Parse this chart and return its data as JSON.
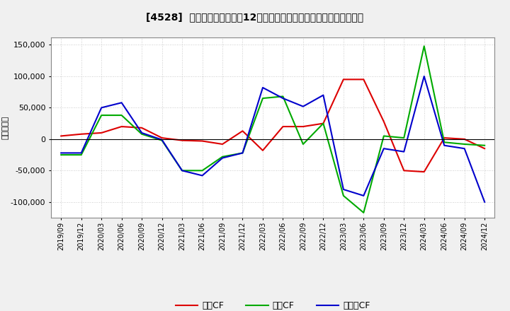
{
  "title": "[4528]  キャッシュフローの12か月移動合計の対前年同期増減額の推移",
  "ylabel": "（百万円）",
  "background_color": "#f0f0f0",
  "plot_background": "#ffffff",
  "grid_color": "#bbbbbb",
  "dates": [
    "2019/09",
    "2019/12",
    "2020/03",
    "2020/06",
    "2020/09",
    "2020/12",
    "2021/03",
    "2021/06",
    "2021/09",
    "2021/12",
    "2022/03",
    "2022/06",
    "2022/09",
    "2022/12",
    "2023/03",
    "2023/06",
    "2023/09",
    "2023/12",
    "2024/03",
    "2024/06",
    "2024/09",
    "2024/12"
  ],
  "operating_cf": [
    5000,
    8000,
    10000,
    20000,
    18000,
    2000,
    -2000,
    -3000,
    -8000,
    13000,
    -18000,
    20000,
    20000,
    25000,
    95000,
    95000,
    28000,
    -50000,
    -52000,
    2000,
    0,
    -15000
  ],
  "investing_cf": [
    -25000,
    -25000,
    38000,
    38000,
    8000,
    -2000,
    -50000,
    -50000,
    -28000,
    -22000,
    65000,
    68000,
    -8000,
    25000,
    -90000,
    -117000,
    5000,
    2000,
    148000,
    -5000,
    -8000,
    -10000
  ],
  "free_cf": [
    -22000,
    -22000,
    50000,
    58000,
    10000,
    -1000,
    -50000,
    -58000,
    -30000,
    -22000,
    82000,
    65000,
    52000,
    70000,
    -80000,
    -90000,
    -15000,
    -20000,
    100000,
    -10000,
    -15000,
    -100000
  ],
  "operating_color": "#dd0000",
  "investing_color": "#00aa00",
  "free_color": "#0000cc",
  "ylim": [
    -125000,
    162000
  ],
  "yticks": [
    -100000,
    -50000,
    0,
    50000,
    100000,
    150000
  ],
  "legend_labels": [
    "営業CF",
    "投資CF",
    "フリーCF"
  ]
}
